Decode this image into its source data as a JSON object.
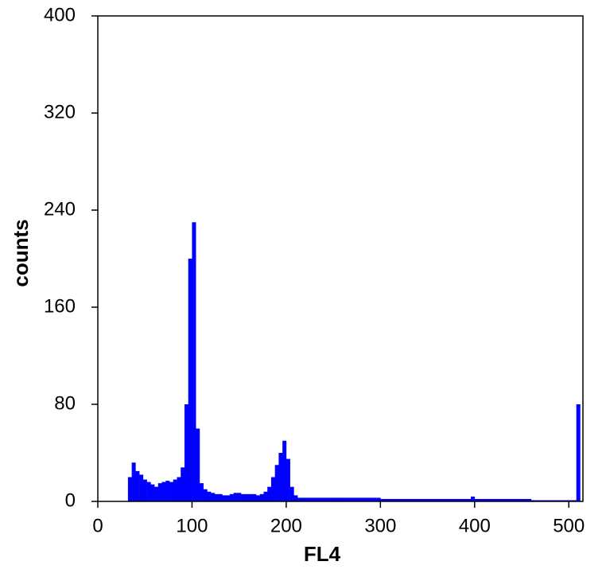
{
  "chart_data": {
    "type": "histogram",
    "xlabel": "FL4",
    "ylabel": "counts",
    "color": "#0000ff",
    "bins": [
      0,
      4,
      8,
      12,
      16,
      20,
      24,
      28,
      32,
      36,
      40,
      44,
      48,
      52,
      56,
      60,
      64,
      68,
      72,
      76,
      80,
      84,
      88,
      92,
      96,
      100,
      104,
      108,
      112,
      116,
      120,
      124,
      128,
      132,
      136,
      140,
      144,
      148,
      152,
      156,
      160,
      164,
      168,
      172,
      176,
      180,
      184,
      188,
      192,
      196,
      200,
      204,
      208,
      212,
      216,
      220,
      224,
      228,
      232,
      236,
      240,
      244,
      248,
      252,
      256,
      260,
      264,
      268,
      272,
      276,
      280,
      284,
      288,
      292,
      296,
      300,
      304,
      308,
      312,
      316,
      320,
      324,
      328,
      332,
      336,
      340,
      344,
      348,
      352,
      356,
      360,
      364,
      368,
      372,
      376,
      380,
      384,
      388,
      392,
      396,
      400,
      404,
      408,
      412,
      416,
      420,
      424,
      428,
      432,
      436,
      440,
      444,
      448,
      452,
      456,
      460,
      464,
      468,
      472,
      476,
      480,
      484,
      488,
      492,
      496,
      500,
      504,
      508,
      512
    ],
    "counts": [
      0,
      0,
      0,
      0,
      0,
      0,
      0,
      0,
      20,
      32,
      25,
      22,
      18,
      16,
      14,
      12,
      15,
      16,
      17,
      16,
      18,
      20,
      28,
      80,
      200,
      230,
      60,
      15,
      10,
      8,
      7,
      6,
      6,
      5,
      5,
      6,
      7,
      7,
      6,
      6,
      6,
      6,
      5,
      6,
      8,
      12,
      20,
      30,
      40,
      50,
      35,
      12,
      5,
      3,
      3,
      3,
      3,
      3,
      3,
      3,
      3,
      3,
      3,
      3,
      3,
      3,
      3,
      3,
      3,
      3,
      3,
      3,
      3,
      3,
      3,
      2,
      2,
      2,
      2,
      2,
      2,
      2,
      2,
      2,
      2,
      2,
      2,
      2,
      2,
      2,
      2,
      2,
      2,
      2,
      2,
      2,
      2,
      2,
      2,
      4,
      2,
      2,
      2,
      2,
      2,
      2,
      2,
      2,
      2,
      2,
      2,
      2,
      2,
      2,
      2,
      1,
      1,
      1,
      1,
      1,
      1,
      1,
      1,
      1,
      1,
      1,
      1,
      80
    ],
    "xlim": [
      0,
      515
    ],
    "ylim": [
      0,
      400
    ],
    "xticks": [
      0,
      100,
      200,
      300,
      400,
      500
    ],
    "yticks": [
      0,
      80,
      160,
      240,
      320,
      400
    ]
  }
}
